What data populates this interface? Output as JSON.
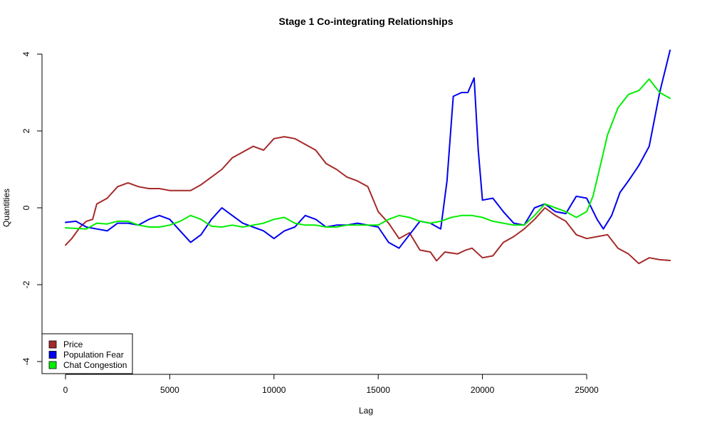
{
  "chart_data": {
    "type": "line",
    "title": "Stage 1 Co-integrating Relationships",
    "xlabel": "Lag",
    "ylabel": "Quantities",
    "xlim": [
      0,
      29000
    ],
    "ylim": [
      -4.3,
      4.3
    ],
    "x_ticks": [
      0,
      5000,
      10000,
      15000,
      20000,
      25000
    ],
    "y_ticks": [
      -4,
      -2,
      0,
      2,
      4
    ],
    "legend_position": "bottom-left",
    "grid": false,
    "series": [
      {
        "name": "Price",
        "color": "#A52A2A",
        "points": [
          [
            0,
            -0.97
          ],
          [
            300,
            -0.8
          ],
          [
            700,
            -0.5
          ],
          [
            1000,
            -0.35
          ],
          [
            1300,
            -0.3
          ],
          [
            1500,
            0.1
          ],
          [
            2000,
            0.25
          ],
          [
            2500,
            0.55
          ],
          [
            3000,
            0.65
          ],
          [
            3500,
            0.55
          ],
          [
            4000,
            0.5
          ],
          [
            4500,
            0.5
          ],
          [
            5000,
            0.45
          ],
          [
            5500,
            0.45
          ],
          [
            6000,
            0.45
          ],
          [
            6500,
            0.6
          ],
          [
            7000,
            0.8
          ],
          [
            7500,
            1.0
          ],
          [
            8000,
            1.3
          ],
          [
            8500,
            1.45
          ],
          [
            9000,
            1.6
          ],
          [
            9500,
            1.5
          ],
          [
            10000,
            1.8
          ],
          [
            10500,
            1.85
          ],
          [
            11000,
            1.8
          ],
          [
            11500,
            1.65
          ],
          [
            12000,
            1.5
          ],
          [
            12500,
            1.15
          ],
          [
            13000,
            1.0
          ],
          [
            13500,
            0.8
          ],
          [
            14000,
            0.7
          ],
          [
            14500,
            0.55
          ],
          [
            15000,
            -0.1
          ],
          [
            15500,
            -0.4
          ],
          [
            16000,
            -0.8
          ],
          [
            16500,
            -0.65
          ],
          [
            17000,
            -1.1
          ],
          [
            17500,
            -1.15
          ],
          [
            17800,
            -1.38
          ],
          [
            18200,
            -1.15
          ],
          [
            18800,
            -1.2
          ],
          [
            19200,
            -1.1
          ],
          [
            19500,
            -1.05
          ],
          [
            20000,
            -1.3
          ],
          [
            20500,
            -1.25
          ],
          [
            21000,
            -0.9
          ],
          [
            21500,
            -0.75
          ],
          [
            22000,
            -0.55
          ],
          [
            22500,
            -0.3
          ],
          [
            23000,
            0.0
          ],
          [
            23500,
            -0.2
          ],
          [
            24000,
            -0.35
          ],
          [
            24500,
            -0.7
          ],
          [
            25000,
            -0.8
          ],
          [
            25500,
            -0.75
          ],
          [
            26000,
            -0.7
          ],
          [
            26500,
            -1.05
          ],
          [
            27000,
            -1.2
          ],
          [
            27500,
            -1.45
          ],
          [
            28000,
            -1.3
          ],
          [
            28500,
            -1.35
          ],
          [
            29000,
            -1.37
          ]
        ]
      },
      {
        "name": "Population Fear",
        "color": "#0000EE",
        "points": [
          [
            0,
            -0.38
          ],
          [
            500,
            -0.35
          ],
          [
            1000,
            -0.5
          ],
          [
            1500,
            -0.55
          ],
          [
            2000,
            -0.6
          ],
          [
            2500,
            -0.4
          ],
          [
            3000,
            -0.4
          ],
          [
            3500,
            -0.45
          ],
          [
            4000,
            -0.3
          ],
          [
            4500,
            -0.2
          ],
          [
            5000,
            -0.3
          ],
          [
            5500,
            -0.6
          ],
          [
            6000,
            -0.9
          ],
          [
            6500,
            -0.7
          ],
          [
            7000,
            -0.3
          ],
          [
            7500,
            0.0
          ],
          [
            8000,
            -0.2
          ],
          [
            8500,
            -0.4
          ],
          [
            9000,
            -0.5
          ],
          [
            9500,
            -0.6
          ],
          [
            10000,
            -0.8
          ],
          [
            10500,
            -0.6
          ],
          [
            11000,
            -0.5
          ],
          [
            11500,
            -0.2
          ],
          [
            12000,
            -0.3
          ],
          [
            12500,
            -0.5
          ],
          [
            13000,
            -0.45
          ],
          [
            13500,
            -0.45
          ],
          [
            14000,
            -0.4
          ],
          [
            14500,
            -0.45
          ],
          [
            15000,
            -0.5
          ],
          [
            15500,
            -0.9
          ],
          [
            16000,
            -1.05
          ],
          [
            16500,
            -0.7
          ],
          [
            17000,
            -0.35
          ],
          [
            17500,
            -0.4
          ],
          [
            18000,
            -0.55
          ],
          [
            18300,
            0.7
          ],
          [
            18600,
            2.9
          ],
          [
            19000,
            3.0
          ],
          [
            19300,
            3.0
          ],
          [
            19600,
            3.38
          ],
          [
            19800,
            1.5
          ],
          [
            20000,
            0.2
          ],
          [
            20500,
            0.25
          ],
          [
            21000,
            -0.1
          ],
          [
            21500,
            -0.4
          ],
          [
            22000,
            -0.45
          ],
          [
            22500,
            0.0
          ],
          [
            23000,
            0.1
          ],
          [
            23500,
            -0.1
          ],
          [
            24000,
            -0.15
          ],
          [
            24500,
            0.3
          ],
          [
            25000,
            0.25
          ],
          [
            25500,
            -0.3
          ],
          [
            25800,
            -0.55
          ],
          [
            26200,
            -0.2
          ],
          [
            26600,
            0.4
          ],
          [
            27000,
            0.7
          ],
          [
            27500,
            1.1
          ],
          [
            28000,
            1.6
          ],
          [
            28500,
            3.0
          ],
          [
            29000,
            4.1
          ]
        ]
      },
      {
        "name": "Chat Congestion",
        "color": "#00EE00",
        "points": [
          [
            0,
            -0.52
          ],
          [
            1000,
            -0.55
          ],
          [
            1500,
            -0.4
          ],
          [
            2000,
            -0.42
          ],
          [
            2500,
            -0.35
          ],
          [
            3000,
            -0.35
          ],
          [
            3500,
            -0.45
          ],
          [
            4000,
            -0.5
          ],
          [
            4500,
            -0.5
          ],
          [
            5000,
            -0.45
          ],
          [
            5500,
            -0.35
          ],
          [
            6000,
            -0.2
          ],
          [
            6500,
            -0.3
          ],
          [
            7000,
            -0.48
          ],
          [
            7500,
            -0.5
          ],
          [
            8000,
            -0.45
          ],
          [
            8500,
            -0.5
          ],
          [
            9000,
            -0.45
          ],
          [
            9500,
            -0.4
          ],
          [
            10000,
            -0.3
          ],
          [
            10500,
            -0.25
          ],
          [
            11000,
            -0.4
          ],
          [
            11500,
            -0.45
          ],
          [
            12000,
            -0.45
          ],
          [
            12500,
            -0.5
          ],
          [
            13000,
            -0.5
          ],
          [
            13500,
            -0.45
          ],
          [
            14000,
            -0.45
          ],
          [
            14500,
            -0.45
          ],
          [
            15000,
            -0.45
          ],
          [
            15500,
            -0.3
          ],
          [
            16000,
            -0.2
          ],
          [
            16500,
            -0.25
          ],
          [
            17000,
            -0.35
          ],
          [
            17500,
            -0.4
          ],
          [
            18000,
            -0.35
          ],
          [
            18500,
            -0.25
          ],
          [
            19000,
            -0.2
          ],
          [
            19500,
            -0.2
          ],
          [
            20000,
            -0.25
          ],
          [
            20500,
            -0.35
          ],
          [
            21000,
            -0.4
          ],
          [
            21500,
            -0.45
          ],
          [
            22000,
            -0.45
          ],
          [
            22500,
            -0.2
          ],
          [
            23000,
            0.1
          ],
          [
            23500,
            0.0
          ],
          [
            24000,
            -0.1
          ],
          [
            24500,
            -0.25
          ],
          [
            25000,
            -0.1
          ],
          [
            25300,
            0.3
          ],
          [
            25700,
            1.2
          ],
          [
            26000,
            1.9
          ],
          [
            26500,
            2.6
          ],
          [
            27000,
            2.95
          ],
          [
            27500,
            3.05
          ],
          [
            28000,
            3.35
          ],
          [
            28500,
            3.0
          ],
          [
            29000,
            2.85
          ]
        ]
      }
    ]
  }
}
